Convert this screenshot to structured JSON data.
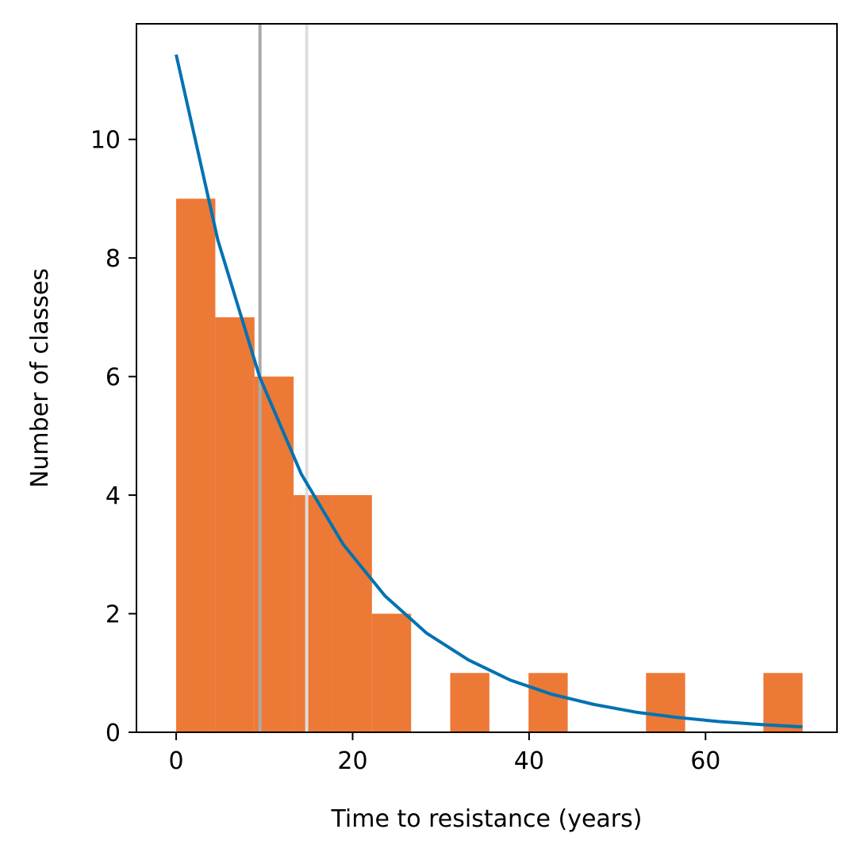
{
  "chart_data": {
    "type": "bar",
    "xlabel": "Time to resistance (years)",
    "ylabel": "Number of classes",
    "xlim": [
      -4.5,
      74.9
    ],
    "ylim": [
      0,
      11.95
    ],
    "x_ticks": [
      0,
      20,
      40,
      60
    ],
    "y_ticks": [
      0,
      2,
      4,
      6,
      8,
      10
    ],
    "bin_edges": [
      0,
      4.44,
      8.88,
      13.31,
      17.75,
      22.19,
      26.63,
      31.06,
      35.5,
      39.94,
      44.38,
      48.81,
      53.25,
      57.69,
      62.13,
      66.56,
      71.0
    ],
    "counts": [
      9,
      7,
      6,
      4,
      4,
      2,
      0,
      1,
      0,
      1,
      0,
      0,
      1,
      0,
      0,
      1
    ],
    "bar_color": "#ed7936",
    "fit_curve": {
      "color": "#0072b2",
      "x": [
        0,
        4.73,
        9.47,
        14.2,
        18.93,
        23.67,
        28.4,
        33.13,
        37.87,
        42.6,
        47.33,
        52.07,
        56.8,
        61.53,
        66.27,
        71.0
      ],
      "y": [
        11.43,
        8.3,
        5.99,
        4.35,
        3.17,
        2.3,
        1.67,
        1.22,
        0.88,
        0.64,
        0.47,
        0.34,
        0.25,
        0.18,
        0.13,
        0.09
      ]
    },
    "vertical_lines": [
      {
        "x": 9.5,
        "color": "#aaaaaa"
      },
      {
        "x": 14.8,
        "color": "#dddddd"
      }
    ],
    "grid": false,
    "legend": "none"
  }
}
